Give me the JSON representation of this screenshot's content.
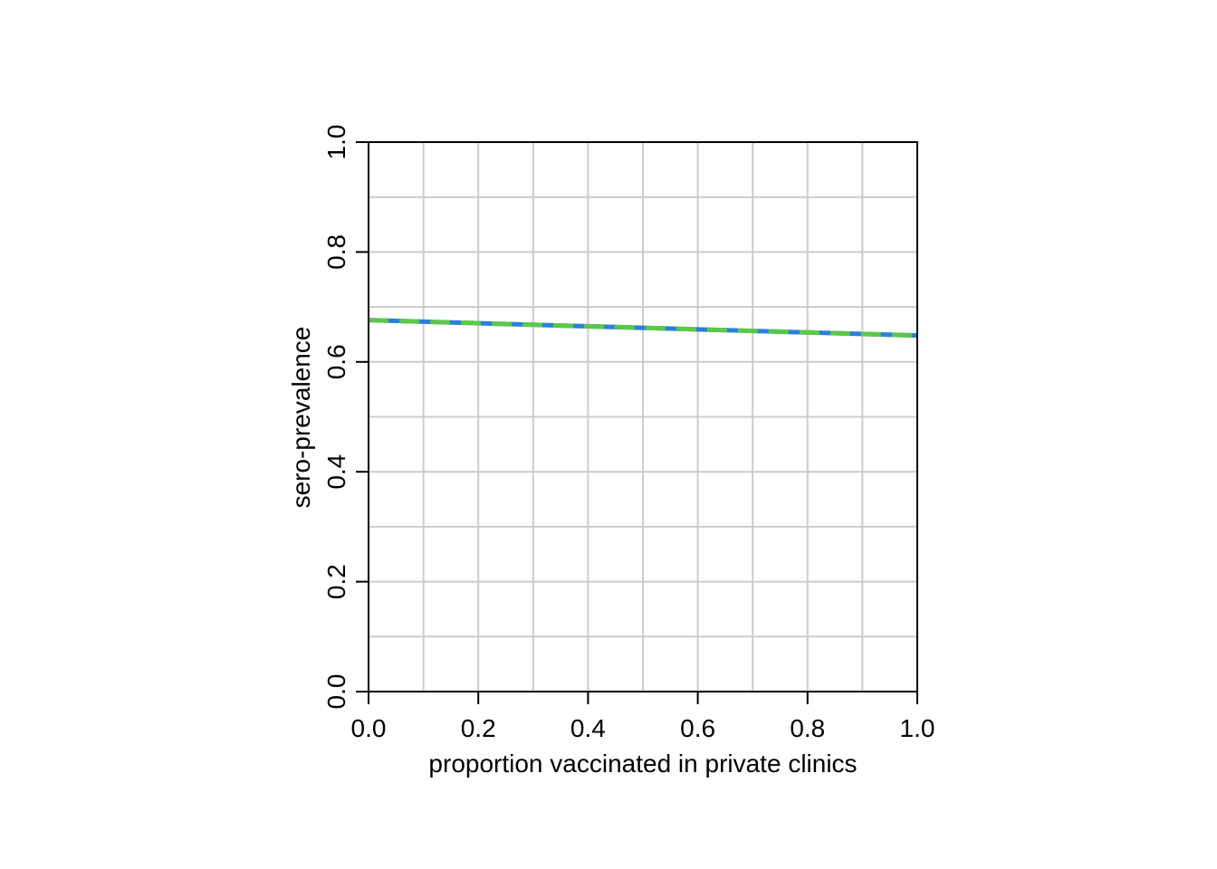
{
  "chart_data": {
    "type": "line",
    "xlabel": "proportion vaccinated in private clinics",
    "ylabel": "sero-prevalence",
    "xlim": [
      0,
      1
    ],
    "ylim": [
      0,
      1
    ],
    "x_ticks": [
      "0.0",
      "0.2",
      "0.4",
      "0.6",
      "0.8",
      "1.0"
    ],
    "y_ticks": [
      "0.0",
      "0.2",
      "0.4",
      "0.6",
      "0.8",
      "1.0"
    ],
    "grid": true,
    "grid_step": 0.1,
    "series": [
      {
        "color": "#2a7fe0",
        "style": "solid",
        "x": [
          0,
          1
        ],
        "y": [
          0.676,
          0.648
        ]
      },
      {
        "color": "#5cc845",
        "style": "dashed",
        "x": [
          0,
          1
        ],
        "y": [
          0.676,
          0.648
        ]
      }
    ]
  }
}
